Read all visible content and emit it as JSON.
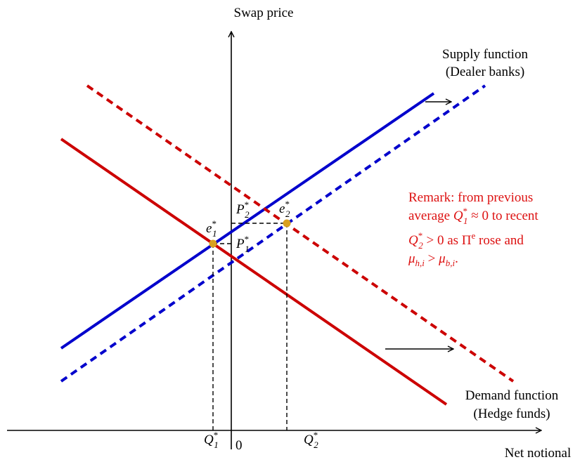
{
  "axes": {
    "y_label": "Swap price",
    "x_label": "Net notional",
    "origin": "0"
  },
  "labels": {
    "Q1": {
      "base": "Q",
      "sup": "*",
      "sub": "1"
    },
    "Q2": {
      "base": "Q",
      "sup": "*",
      "sub": "2"
    },
    "P1": {
      "base": "P",
      "sup": "*",
      "sub": "1"
    },
    "P2": {
      "base": "P",
      "sup": "*",
      "sub": "2"
    },
    "e1": {
      "base": "e",
      "sup": "*",
      "sub": "1"
    },
    "e2": {
      "base": "e",
      "sup": "*",
      "sub": "2"
    }
  },
  "supply": {
    "lines": [
      "Supply function",
      "(Dealer banks)"
    ]
  },
  "demand": {
    "lines": [
      "Demand function",
      "(Hedge funds)"
    ]
  },
  "remark": {
    "lines": [
      [
        "Remark: from previous"
      ],
      [
        "average ",
        {
          "base": "Q",
          "sup": "*",
          "sub": "1"
        },
        " ≈ 0 to recent"
      ],
      [
        {
          "base": "Q",
          "sup": "*",
          "sub": "2"
        },
        " > 0 as ",
        {
          "base": "Π",
          "sup": "e"
        },
        " rose and"
      ],
      [
        {
          "base": "μ",
          "sub": "h,i"
        },
        " > ",
        {
          "base": "μ",
          "sub": "b,i"
        },
        "."
      ]
    ]
  }
}
